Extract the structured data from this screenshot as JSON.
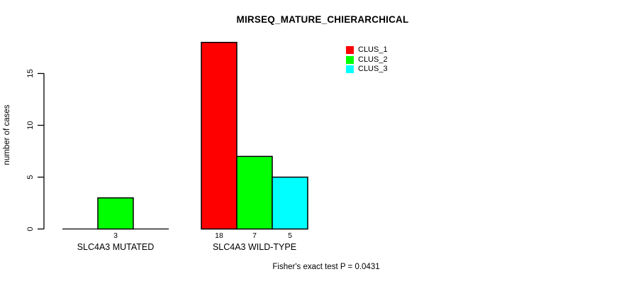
{
  "chart_data": {
    "type": "bar",
    "title": "MIRSEQ_MATURE_CHIERARCHICAL",
    "ylabel": "number of cases",
    "xlabel": "",
    "categories": [
      "SLC4A3 MUTATED",
      "SLC4A3 WILD-TYPE"
    ],
    "series": [
      {
        "name": "CLUS_1",
        "color": "#FF0000",
        "values": [
          0,
          18
        ]
      },
      {
        "name": "CLUS_2",
        "color": "#00FF00",
        "values": [
          3,
          7
        ]
      },
      {
        "name": "CLUS_3",
        "color": "#00FFFF",
        "values": [
          0,
          5
        ]
      }
    ],
    "bar_value_labels_rule": "value shown under each bar when value > 0",
    "yticks": [
      0,
      5,
      10,
      15
    ],
    "ylim": [
      0,
      18
    ],
    "grid": false,
    "legend_position": "top-right",
    "annotation": "Fisher's exact test P = 0.0431",
    "background": "#FFFFFF",
    "axis_color": "#000000",
    "text_color": "#000000"
  }
}
